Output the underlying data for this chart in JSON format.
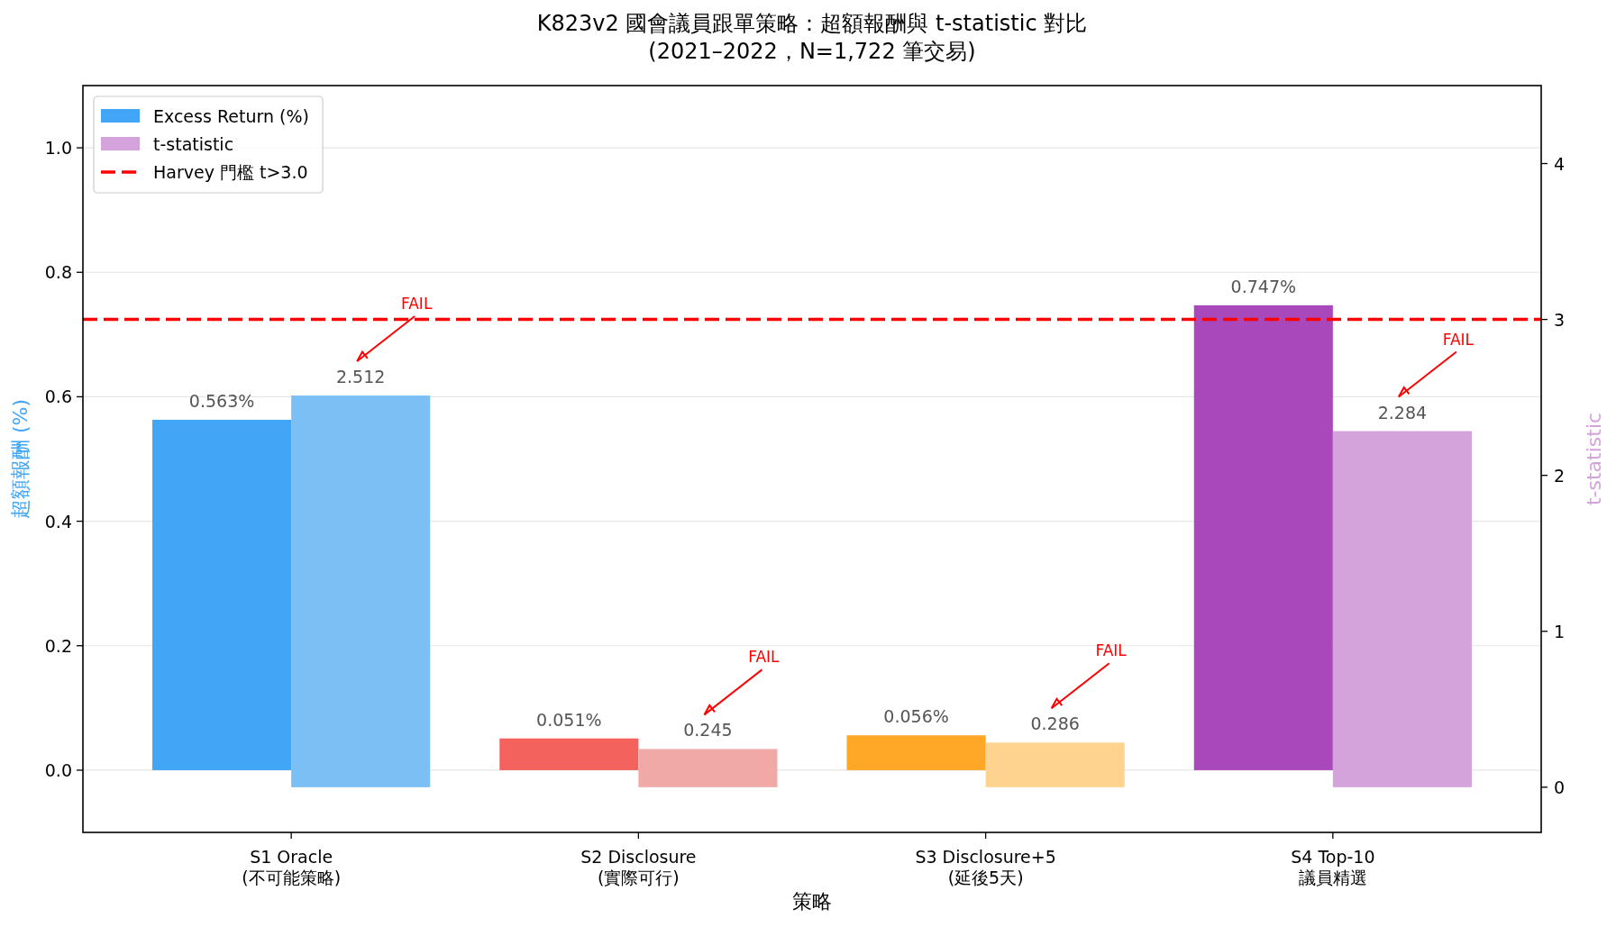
{
  "chart_data": {
    "type": "bar",
    "title": "K823v2 國會議員跟單策略：超額報酬與 t-statistic 對比",
    "subtitle": "(2021–2022，N=1,722 筆交易)",
    "xlabel": "策略",
    "ylabel": "超額報酬 (%)",
    "y2label": "t-statistic",
    "categories": [
      "S1 Oracle\n(不可能策略)",
      "S2 Disclosure\n(實際可行)",
      "S3 Disclosure+5\n(延後5天)",
      "S4 Top-10\n議員精選"
    ],
    "series": [
      {
        "name": "Excess Return (%)",
        "color": "#42a5f5",
        "colors": [
          "#42a5f5",
          "#f4625e",
          "#ffa726",
          "#a948ba"
        ],
        "values": [
          0.563,
          0.051,
          0.056,
          0.747
        ],
        "value_labels": [
          "0.563%",
          "0.051%",
          "0.056%",
          "0.747%"
        ]
      },
      {
        "name": "t-statistic",
        "color": "#d4a3dc",
        "axis": "y2",
        "colors": [
          "#7bbff5",
          "#f1a9a8",
          "#fed28f",
          "#d4a3dc"
        ],
        "values": [
          2.512,
          0.245,
          0.286,
          2.284
        ],
        "value_labels": [
          "2.512",
          "0.245",
          "0.286",
          "2.284"
        ]
      }
    ],
    "ylim": [
      -0.1,
      1.1
    ],
    "yticks": [
      {
        "value": 0,
        "label": "0.0"
      },
      {
        "value": 0.2,
        "label": "0.2"
      },
      {
        "value": 0.4,
        "label": "0.4"
      },
      {
        "value": 0.6,
        "label": "0.6"
      },
      {
        "value": 0.8,
        "label": "0.8"
      },
      {
        "value": 1,
        "label": "1.0"
      }
    ],
    "y2lim": [
      -0.29,
      4.5
    ],
    "y2ticks": [
      0,
      1,
      2,
      3,
      4
    ],
    "ref_lines": [
      {
        "axis": "y2",
        "value": 3.0,
        "label": "Harvey 門檻 t>3.0",
        "color": "#ff0000",
        "line_style": "dashed"
      }
    ],
    "annotations": [
      "FAIL",
      "FAIL",
      "FAIL",
      "FAIL"
    ],
    "grid": "y",
    "legend": "top left"
  }
}
